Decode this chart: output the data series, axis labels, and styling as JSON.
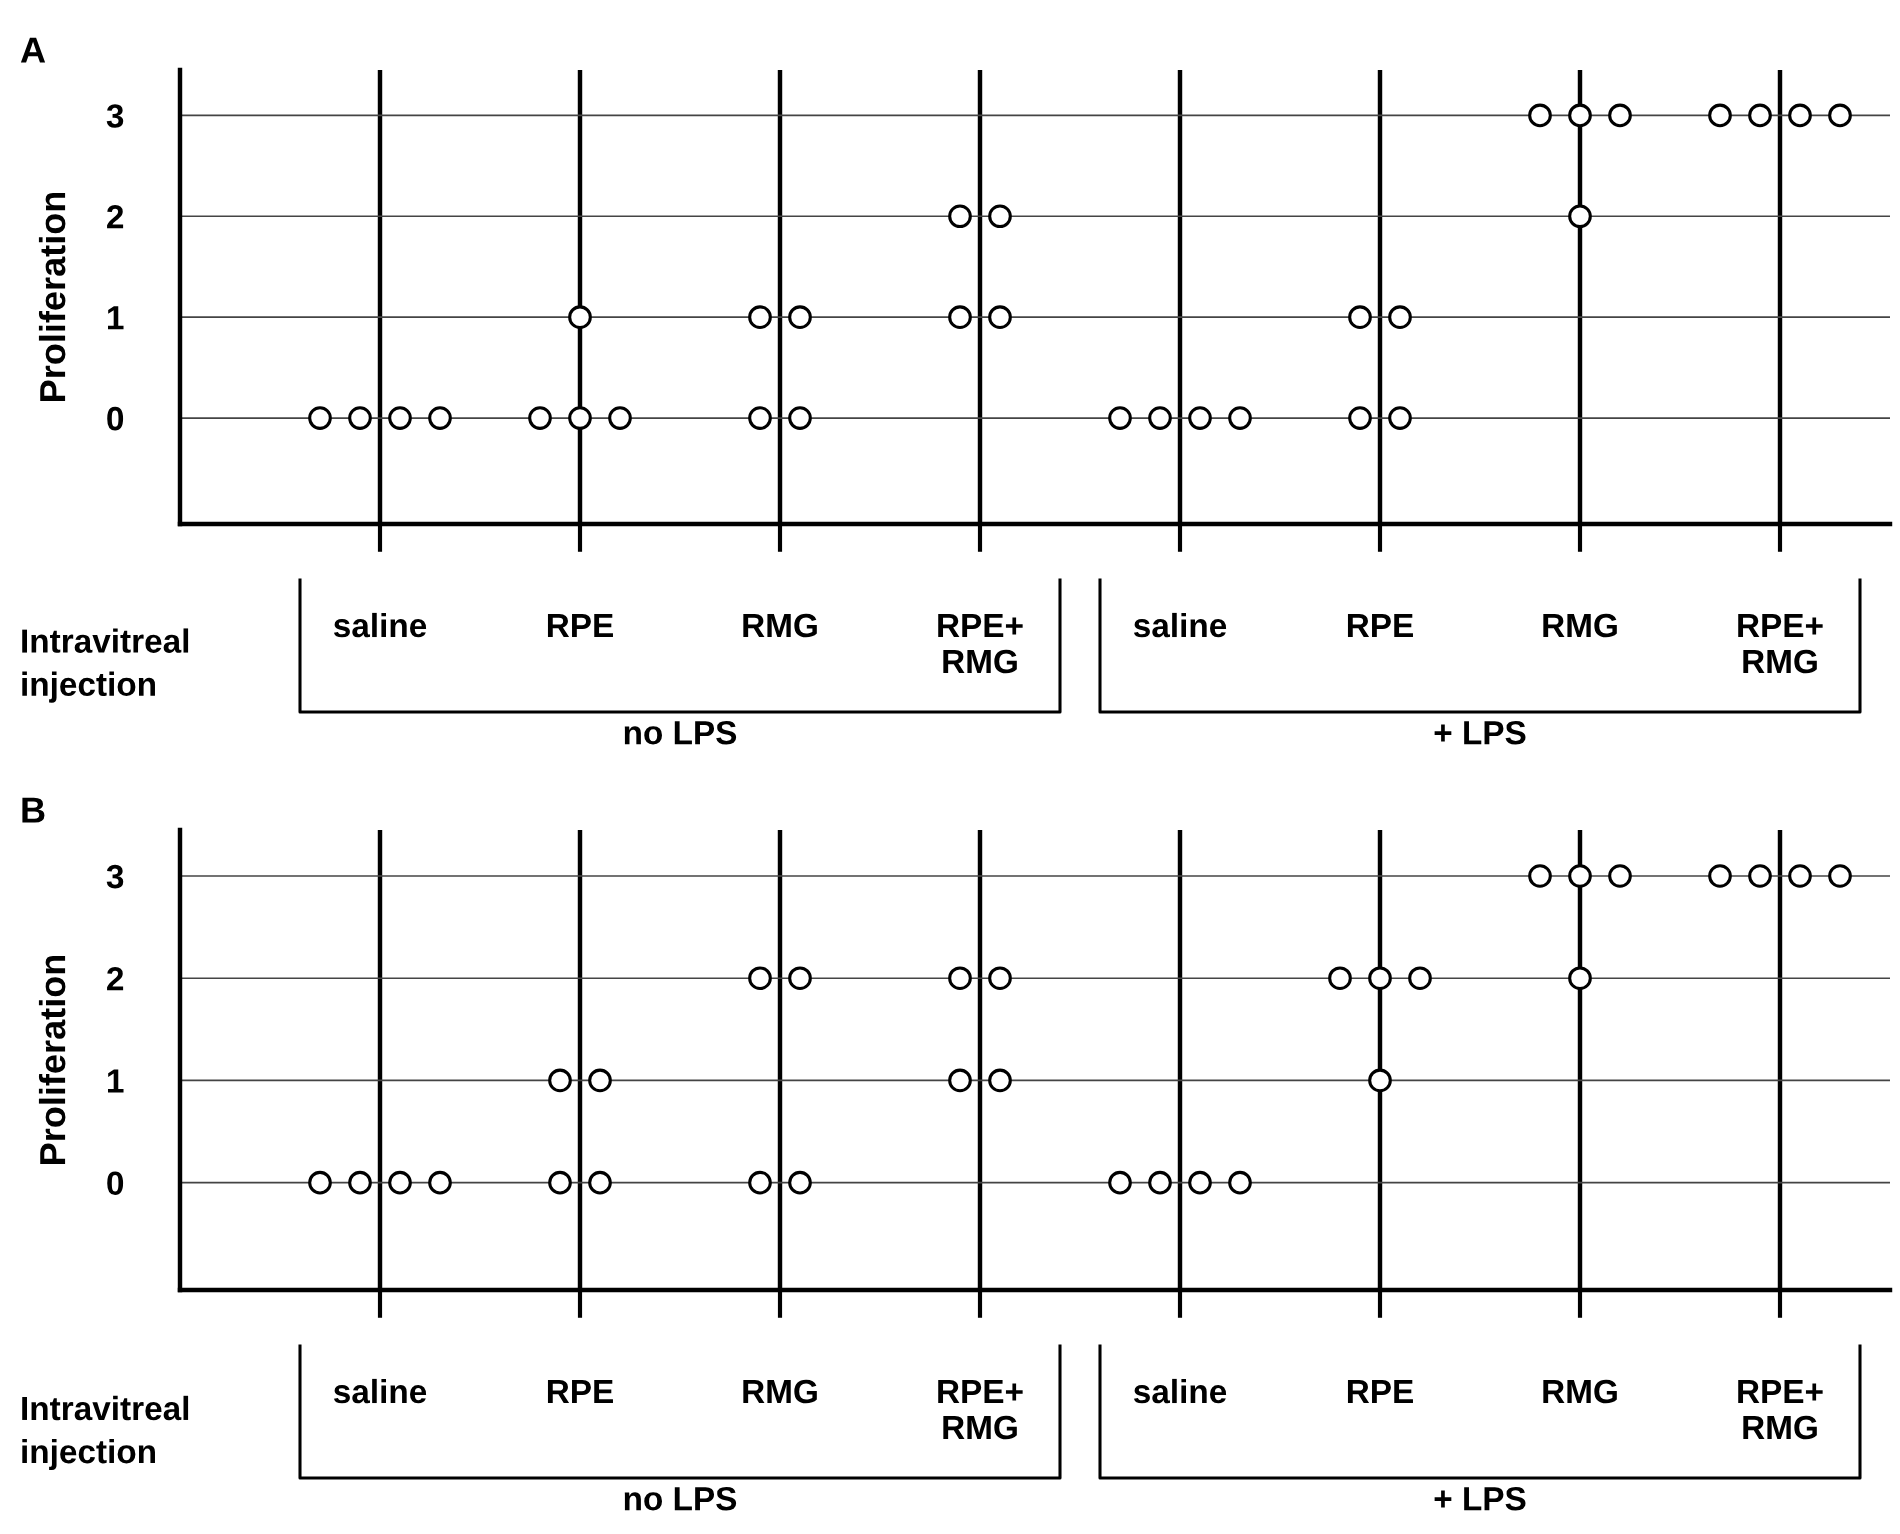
{
  "chart_data": [
    {
      "type": "scatter",
      "title": "A",
      "ylabel": "Proliferation",
      "xlabel": "Intravitreal\ninjection",
      "categories": [
        "saline",
        "RPE",
        "RMG",
        "RPE+\nRMG",
        "saline",
        "RPE",
        "RMG",
        "RPE+\nRMG"
      ],
      "series": [
        {
          "color": "#000000",
          "values": [
            0,
            1,
            1,
            2,
            0,
            1,
            3,
            3
          ]
        },
        {
          "color": "#000000",
          "values": [
            0,
            0,
            1,
            2,
            0,
            1,
            3,
            3
          ]
        },
        {
          "color": "#000000",
          "values": [
            0,
            0,
            0,
            1,
            0,
            0,
            3,
            3
          ]
        },
        {
          "color": "#000000",
          "values": [
            0,
            0,
            0,
            1,
            0,
            0,
            2,
            3
          ]
        }
      ],
      "ylim": [
        -1.05,
        3.45
      ],
      "yticks": [
        0,
        1,
        2,
        3
      ],
      "grid": true,
      "marker": "circle",
      "legend": false,
      "annotations": [
        "no LPS",
        "+ LPS"
      ]
    },
    {
      "type": "scatter",
      "title": "B",
      "ylabel": "Proliferation",
      "xlabel": "Intravitreal\ninjection",
      "categories": [
        "saline",
        "RPE",
        "RMG",
        "RPE+\nRMG",
        "saline",
        "RPE",
        "RMG",
        "RPE+\nRMG"
      ],
      "series": [
        {
          "color": "#000000",
          "values": [
            0,
            1,
            2,
            2,
            0,
            2,
            3,
            3
          ]
        },
        {
          "color": "#000000",
          "values": [
            0,
            1,
            2,
            2,
            0,
            2,
            3,
            3
          ]
        },
        {
          "color": "#000000",
          "values": [
            0,
            0,
            0,
            1,
            0,
            2,
            3,
            3
          ]
        },
        {
          "color": "#000000",
          "values": [
            0,
            0,
            0,
            1,
            0,
            1,
            2,
            3
          ]
        }
      ],
      "ylim": [
        -1.05,
        3.45
      ],
      "yticks": [
        0,
        1,
        2,
        3
      ],
      "grid": true,
      "marker": "circle",
      "legend": false,
      "annotations": [
        "no LPS",
        "+ LPS"
      ]
    }
  ]
}
